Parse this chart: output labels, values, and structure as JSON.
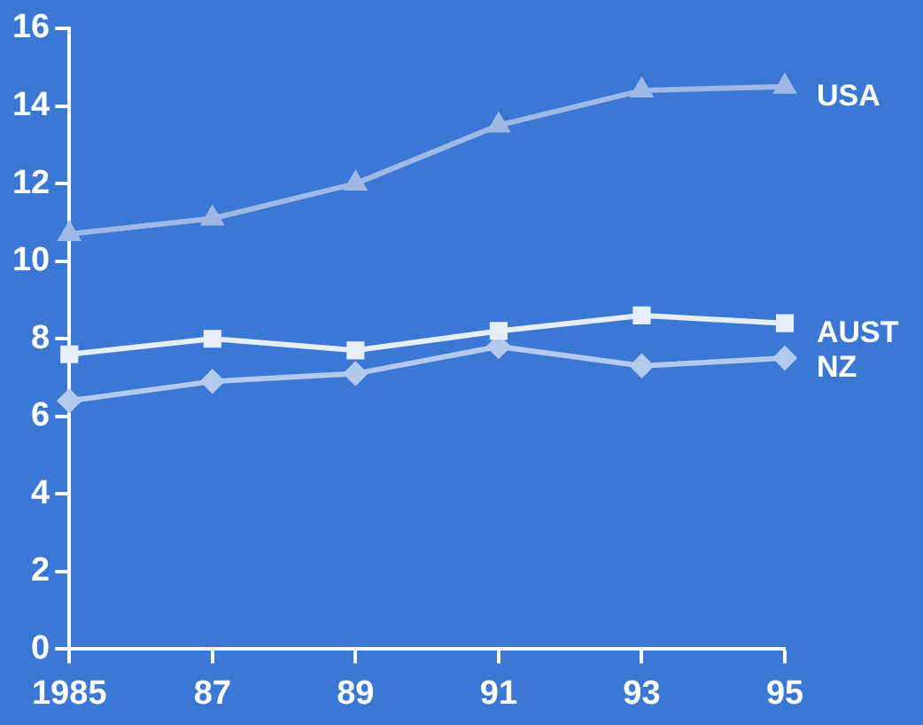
{
  "chart_data": {
    "type": "line",
    "categories": [
      "1985",
      "87",
      "89",
      "91",
      "93",
      "95"
    ],
    "series": [
      {
        "name": "USA",
        "color": "#9fb8e6",
        "marker": "triangle",
        "values": [
          10.7,
          11.1,
          12.0,
          13.5,
          14.4,
          14.5
        ]
      },
      {
        "name": "AUST",
        "color": "#e6eef9",
        "marker": "square",
        "values": [
          7.6,
          8.0,
          7.7,
          8.2,
          8.6,
          8.4
        ]
      },
      {
        "name": "NZ",
        "color": "#b4c9ee",
        "marker": "diamond",
        "values": [
          6.4,
          6.9,
          7.1,
          7.8,
          7.3,
          7.5
        ]
      }
    ],
    "ylim": [
      0,
      16
    ],
    "yticks": [
      0,
      2,
      4,
      6,
      8,
      10,
      12,
      14,
      16
    ],
    "grid": false,
    "legend": false,
    "line_style": "solid"
  }
}
